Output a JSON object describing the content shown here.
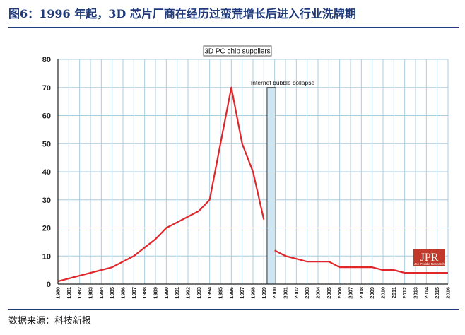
{
  "header": {
    "title": "图6：1996 年起，3D 芯片厂商在经历过蛮荒增长后进入行业洗牌期"
  },
  "footer": {
    "source": "数据来源：科技新报"
  },
  "logo": {
    "text": "JPR",
    "subtext": "Jon Peddie Research",
    "color": "#c0392b"
  },
  "chart_data": {
    "type": "line",
    "title": "3D PC chip suppliers",
    "xlabel": "",
    "ylabel": "",
    "ylim": [
      0,
      80
    ],
    "yticks": [
      0,
      10,
      20,
      30,
      40,
      50,
      60,
      70,
      80
    ],
    "xlim": [
      1980,
      2016
    ],
    "grid": true,
    "line_color": "#e0262a",
    "series": [
      {
        "x": [
          1980,
          1981,
          1982,
          1983,
          1984,
          1985,
          1986,
          1987,
          1988,
          1989,
          1990,
          1991,
          1992,
          1993,
          1994,
          1995,
          1996,
          1997,
          1998,
          1999
        ],
        "y": [
          1,
          2,
          3,
          4,
          5,
          6,
          8,
          10,
          13,
          16,
          20,
          22,
          24,
          26,
          30,
          50,
          70,
          50,
          40,
          23
        ]
      },
      {
        "x": [
          2000,
          2001,
          2002,
          2003,
          2004,
          2005,
          2006,
          2007,
          2008,
          2009,
          2010,
          2011,
          2012,
          2013,
          2014,
          2015,
          2016
        ],
        "y": [
          12,
          10,
          9,
          8,
          8,
          8,
          6,
          6,
          6,
          6,
          5,
          5,
          4,
          4,
          4,
          4,
          4
        ]
      }
    ],
    "annotations": [
      {
        "text": "Internet bubble collapse",
        "x_start": 1999.3,
        "x_end": 2000.1,
        "fill": "#cde6f2"
      }
    ]
  }
}
